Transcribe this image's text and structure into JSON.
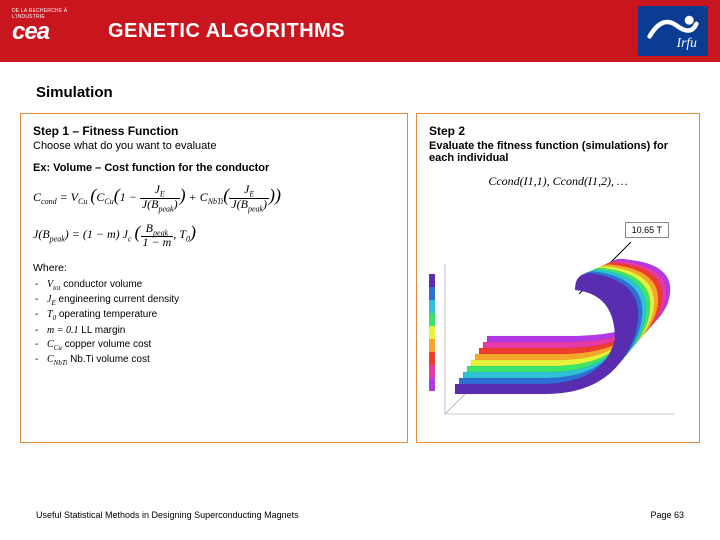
{
  "header": {
    "logo_cea_tagline": "DE LA RECHERCHE À L'INDUSTRIE",
    "logo_cea_mark": "cea",
    "title": "GENETIC ALGORITHMS",
    "logo_irfu_label": "Irfu",
    "irfu_bg": "#0a3d91",
    "header_bg": "#c9151e"
  },
  "section_title": "Simulation",
  "panel_border": "#e48a3a",
  "left": {
    "step_title": "Step 1 – Fitness Function",
    "step_sub": "Choose what do you want to evaluate",
    "ex": "Ex: Volume – Cost function for the conductor",
    "formula1_html": "C<span class='sub'>cond</span> = V<span class='sub'>Cu</span> <span class='big'>(</span>C<span class='sub'>Cu</span><span class='big'>(</span>1 − <span style='display:inline-block;vertical-align:middle;text-align:center;line-height:0.9'><span style='display:block;border-bottom:1px solid #000;padding:0 2px;'>J<span class='sub'>E</span></span><span style='display:block;padding:0 2px;'>J(B<span class='sub'>peak</span>)</span></span><span class='big'>)</span> + C<span class='sub'>NbTi</span><span class='big'>(</span><span style='display:inline-block;vertical-align:middle;text-align:center;line-height:0.9'><span style='display:block;border-bottom:1px solid #000;padding:0 2px;'>J<span class='sub'>E</span></span><span style='display:block;padding:0 2px;'>J(B<span class='sub'>peak</span>)</span></span><span class='big'>)</span><span class='big'>)</span>",
    "formula2_html": "J(B<span class='sub'>peak</span>) = (1 − m) J<span class='sub'>c</span> <span class='big'>(</span><span style='display:inline-block;vertical-align:middle;text-align:center;line-height:0.9'><span style='display:block;border-bottom:1px solid #000;padding:0 2px;'>B<span class='sub'>peak</span></span><span style='display:block;padding:0 2px;'>1 − m</span></span>, T<span class='sub'>0</span><span class='big'>)</span>",
    "where_label": "Where:",
    "where_items": [
      {
        "sym": "V<span class='symsub'>tot</span>",
        "desc": "conductor volume"
      },
      {
        "sym": "J<span class='symsub'>E</span>",
        "desc": "engineering current density"
      },
      {
        "sym": "T<span class='symsub'>0</span>",
        "desc": "operating temperature"
      },
      {
        "sym": "m = 0.1",
        "desc": "LL margin"
      },
      {
        "sym": "C<span class='symsub'>Cu</span>",
        "desc": "copper volume cost"
      },
      {
        "sym": "C<span class='symsub'>NbTi</span>",
        "desc": "Nb.Ti volume cost"
      }
    ]
  },
  "right": {
    "step_title": "Step 2",
    "step_sub": "Evaluate the fitness function (simulations) for each individual",
    "formula_html": "C<span class='sub'>cond</span>(I<span class='sub'>1,1</span>), C<span class='sub'>cond</span>(I<span class='sub'>1,2</span>), …",
    "annotation": "10.65 T",
    "sim_colors": [
      "#5a2db0",
      "#2e6fd6",
      "#2fc1d6",
      "#3be46a",
      "#e7f23a",
      "#f6a62b",
      "#ef3d2e",
      "#e63aa6",
      "#b23ae6"
    ]
  },
  "footer": {
    "left": "Useful Statistical Methods in Designing Superconducting Magnets",
    "right": "Page 63"
  }
}
